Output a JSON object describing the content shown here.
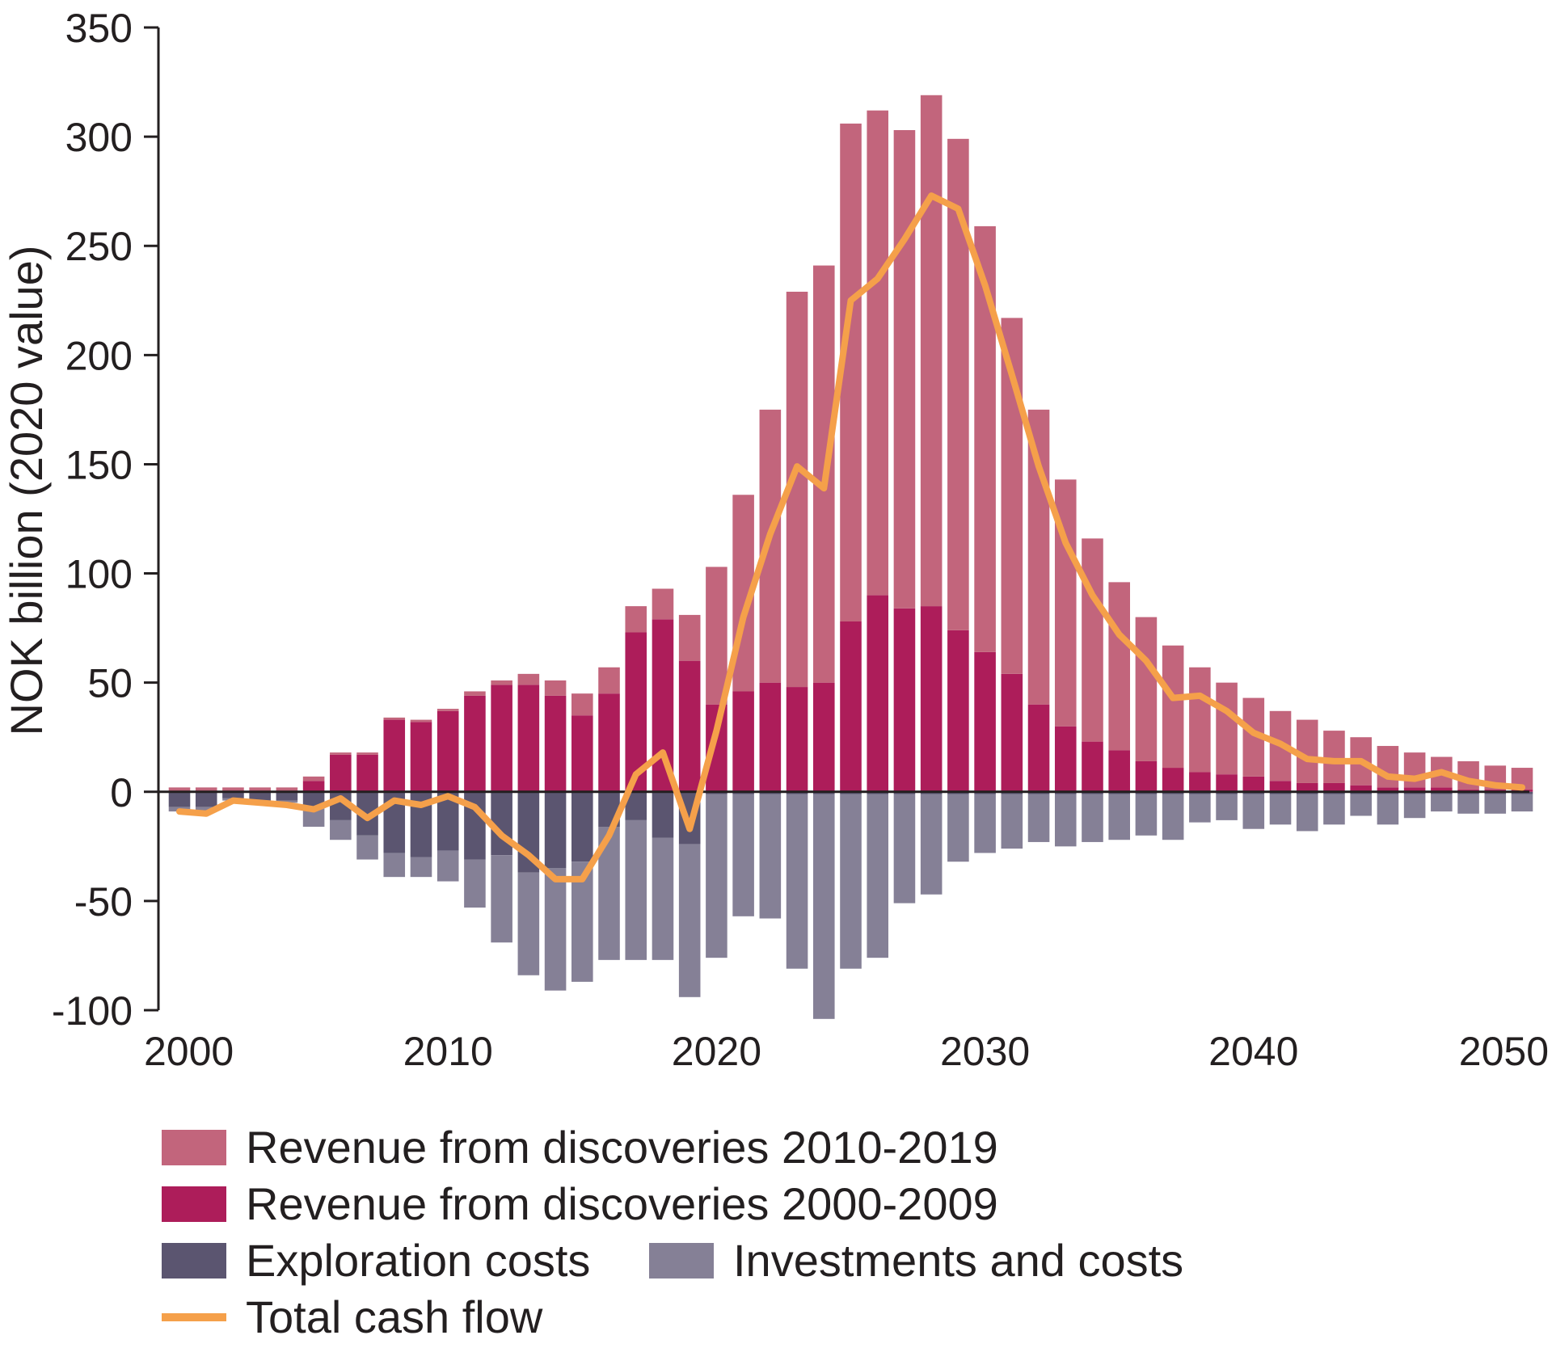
{
  "chart_data": {
    "type": "bar",
    "ylabel": "NOK billion (2020 value)",
    "xlabel": "",
    "ylim": [
      -100,
      350
    ],
    "yticks": [
      "350",
      "300",
      "250",
      "200",
      "150",
      "100",
      "50",
      "0",
      "-50",
      "-100"
    ],
    "xticks": [
      "2000",
      "2010",
      "2020",
      "2030",
      "2040",
      "2050"
    ],
    "years": [
      2000,
      2001,
      2002,
      2003,
      2004,
      2005,
      2006,
      2007,
      2008,
      2009,
      2010,
      2011,
      2012,
      2013,
      2014,
      2015,
      2016,
      2017,
      2018,
      2019,
      2020,
      2021,
      2022,
      2023,
      2024,
      2025,
      2026,
      2027,
      2028,
      2029,
      2030,
      2031,
      2032,
      2033,
      2034,
      2035,
      2036,
      2037,
      2038,
      2039,
      2040,
      2041,
      2042,
      2043,
      2044,
      2045,
      2046,
      2047,
      2048,
      2049,
      2050
    ],
    "series": [
      {
        "name": "Revenue from discoveries 2000-2009",
        "color": "#ad1d5a",
        "values": [
          0,
          0,
          0,
          0,
          0,
          5,
          17,
          17,
          33,
          32,
          37,
          44,
          49,
          49,
          44,
          35,
          45,
          73,
          79,
          60,
          40,
          46,
          50,
          48,
          50,
          78,
          90,
          84,
          85,
          74,
          64,
          54,
          40,
          30,
          23,
          19,
          14,
          11,
          9,
          8,
          7,
          5,
          4,
          4,
          3,
          2,
          2,
          2,
          1,
          1,
          1
        ]
      },
      {
        "name": "Revenue from discoveries 2010-2019",
        "color": "#c2657c",
        "values": [
          2,
          2,
          2,
          2,
          2,
          2,
          1,
          1,
          1,
          1,
          1,
          2,
          2,
          5,
          7,
          10,
          12,
          12,
          14,
          21,
          63,
          90,
          125,
          181,
          191,
          228,
          222,
          219,
          234,
          225,
          195,
          163,
          135,
          113,
          93,
          77,
          66,
          56,
          48,
          42,
          36,
          32,
          29,
          24,
          22,
          19,
          16,
          14,
          13,
          11,
          10
        ]
      },
      {
        "name": "Exploration costs",
        "color": "#5b5570",
        "values": [
          -7,
          -7,
          -3,
          -5,
          -4,
          -7,
          -13,
          -20,
          -28,
          -30,
          -27,
          -31,
          -29,
          -37,
          -35,
          -32,
          -16,
          -13,
          -21,
          -24,
          -1,
          -1,
          -1,
          -1,
          -1,
          -1,
          -1,
          -1,
          -1,
          -1,
          -1,
          -1,
          -1,
          -1,
          -1,
          -1,
          -1,
          -1,
          -1,
          -1,
          -1,
          -1,
          -1,
          -1,
          -1,
          -1,
          -1,
          -1,
          -1,
          -1,
          -1
        ]
      },
      {
        "name": "Investments and costs",
        "color": "#858096",
        "values": [
          -2,
          -2,
          -1,
          -1,
          -1,
          -9,
          -9,
          -11,
          -11,
          -9,
          -14,
          -22,
          -40,
          -47,
          -56,
          -55,
          -61,
          -64,
          -56,
          -70,
          -75,
          -56,
          -57,
          -80,
          -103,
          -80,
          -75,
          -50,
          -46,
          -31,
          -27,
          -25,
          -22,
          -24,
          -22,
          -21,
          -19,
          -21,
          -13,
          -12,
          -16,
          -14,
          -17,
          -14,
          -10,
          -14,
          -11,
          -8,
          -9,
          -9,
          -8
        ]
      },
      {
        "name": "Total cash flow",
        "color": "#f5a04a",
        "type": "line",
        "values": [
          -9,
          -10,
          -4,
          -5,
          -6,
          -8,
          -3,
          -12,
          -4,
          -6,
          -2,
          -7,
          -20,
          -29,
          -40,
          -40,
          -20,
          8,
          18,
          -17,
          28,
          80,
          118,
          149,
          139,
          225,
          235,
          253,
          273,
          267,
          232,
          191,
          149,
          114,
          90,
          72,
          60,
          43,
          44,
          37,
          27,
          22,
          15,
          14,
          14,
          7,
          6,
          9,
          5,
          3,
          2
        ]
      }
    ]
  },
  "legend": {
    "items": [
      {
        "label": "Revenue from discoveries 2010-2019",
        "color": "#c2657c"
      },
      {
        "label": "Revenue from discoveries 2000-2009",
        "color": "#ad1d5a"
      },
      {
        "label": "Exploration costs",
        "color": "#5b5570"
      },
      {
        "label": "Investments and costs",
        "color": "#858096"
      },
      {
        "label": "Total cash flow",
        "color": "#f5a04a"
      }
    ]
  }
}
